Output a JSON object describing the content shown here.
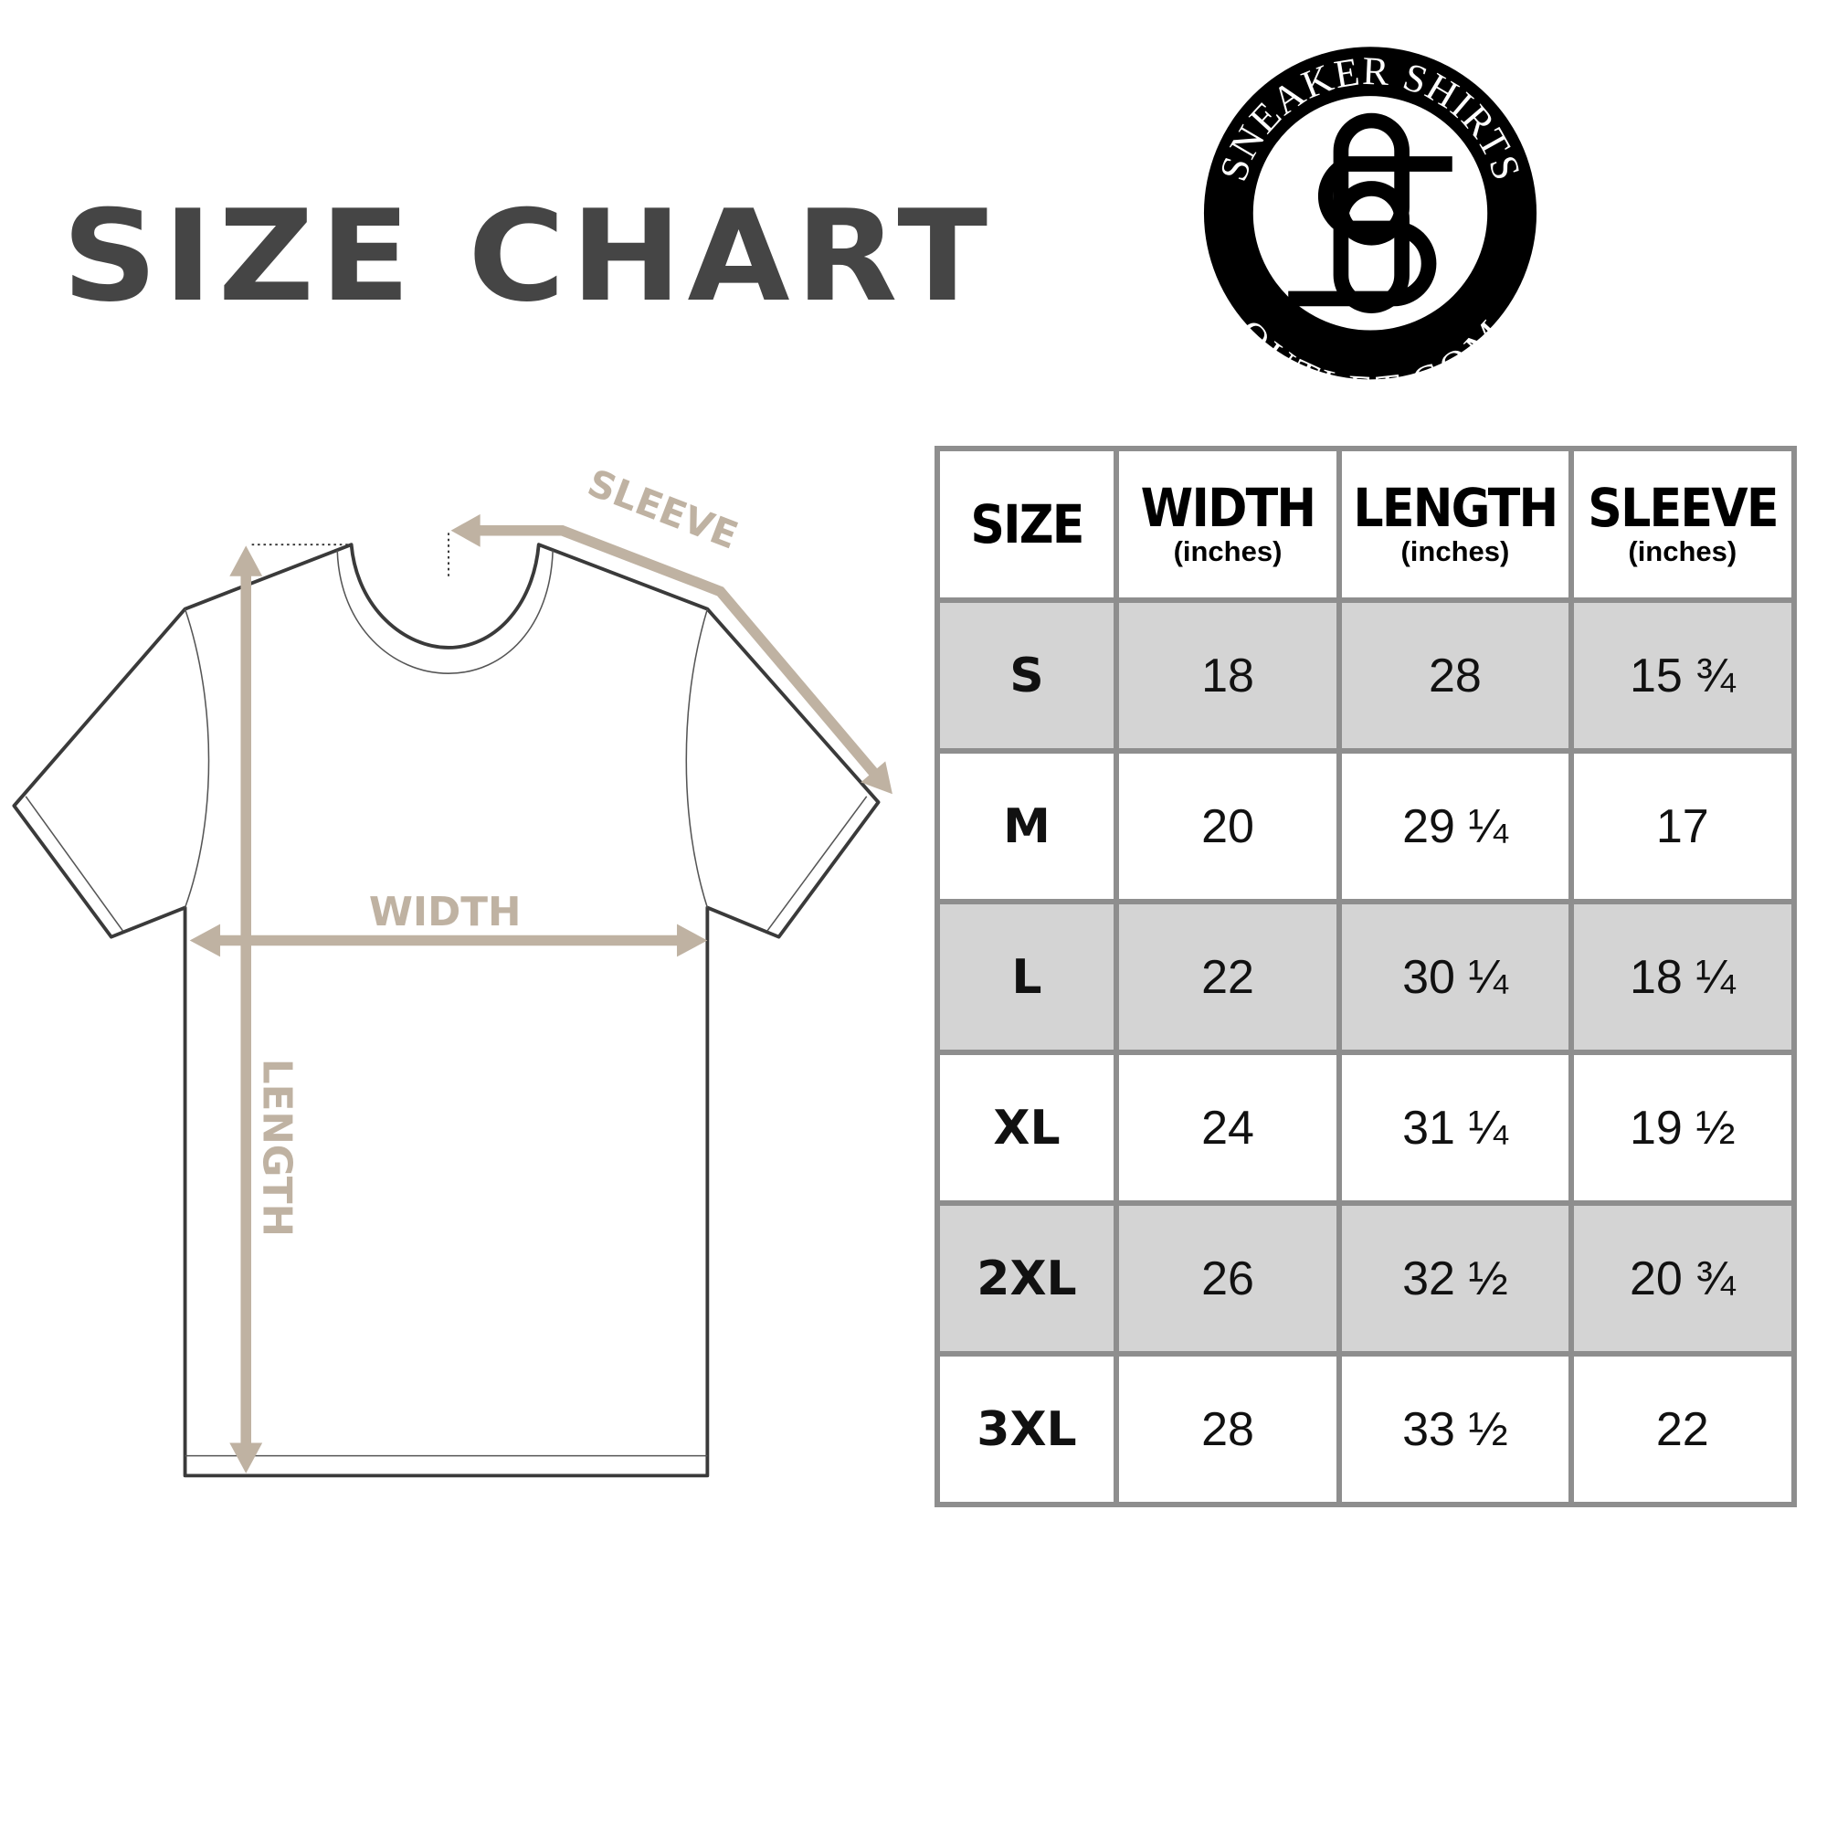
{
  "title": "SIZE CHART",
  "logo": {
    "top_text": "SNEAKER SHIRTS",
    "bottom_text": "OUTLET.COM",
    "monogram": "SO"
  },
  "diagram": {
    "sleeve_label": "SLEEVE",
    "width_label": "WIDTH",
    "length_label": "LENGTH",
    "arrow_color": "#bfb2a2"
  },
  "table": {
    "headers": [
      {
        "main": "SIZE",
        "sub": ""
      },
      {
        "main": "WIDTH",
        "sub": "(inches)"
      },
      {
        "main": "LENGTH",
        "sub": "(inches)"
      },
      {
        "main": "SLEEVE",
        "sub": "(inches)"
      }
    ],
    "rows": [
      [
        "S",
        "18",
        "28",
        "15 ¾"
      ],
      [
        "M",
        "20",
        "29 ¼",
        "17"
      ],
      [
        "L",
        "22",
        "30 ¼",
        "18 ¼"
      ],
      [
        "XL",
        "24",
        "31 ¼",
        "19 ½"
      ],
      [
        "2XL",
        "26",
        "32 ½",
        "20 ¾"
      ],
      [
        "3XL",
        "28",
        "33 ½",
        "22"
      ]
    ],
    "stripe_color": "#d4d4d4",
    "border_color": "#8e8e8e"
  }
}
